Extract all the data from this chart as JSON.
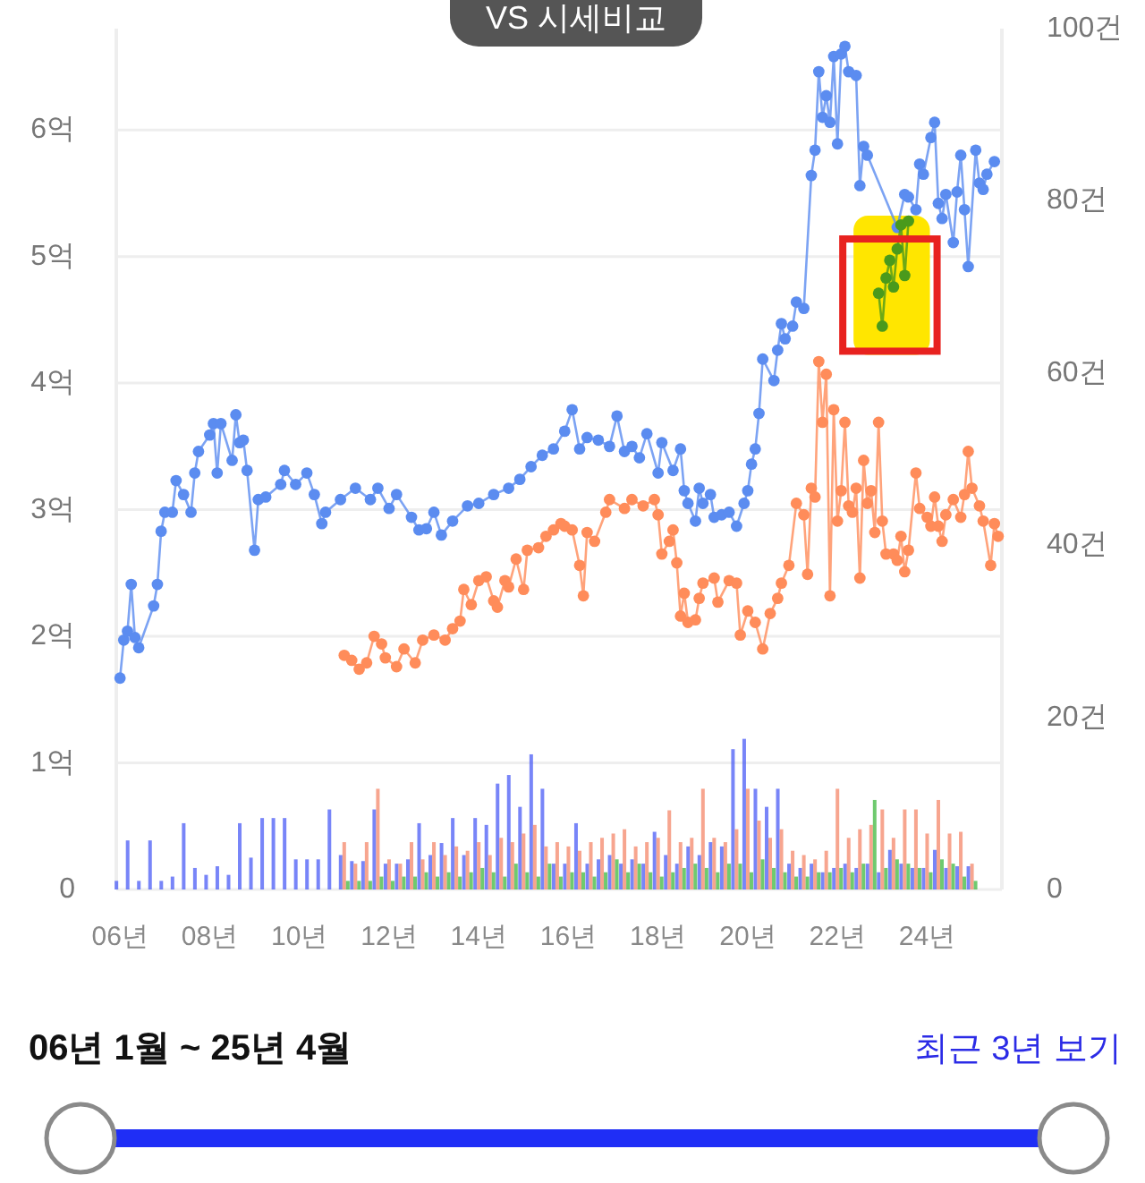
{
  "chart_data": {
    "type": "line",
    "annotations": [
      "VS 시세비교",
      "06년 1월 ~ 25년 4월",
      "최근 3년 보기"
    ],
    "xlim": [
      "2005-12",
      "2025-09"
    ],
    "xticks": [
      {
        "value": "2006-01",
        "label": "06년"
      },
      {
        "value": "2008-01",
        "label": "08년"
      },
      {
        "value": "2010-01",
        "label": "10년"
      },
      {
        "value": "2012-01",
        "label": "12년"
      },
      {
        "value": "2014-01",
        "label": "14년"
      },
      {
        "value": "2016-01",
        "label": "16년"
      },
      {
        "value": "2018-01",
        "label": "18년"
      },
      {
        "value": "2020-01",
        "label": "20년"
      },
      {
        "value": "2022-01",
        "label": "22년"
      },
      {
        "value": "2024-01",
        "label": "24년"
      }
    ],
    "ylim": [
      0,
      6.8
    ],
    "yticks": [
      0,
      {
        "value": 1,
        "label": "1억"
      },
      {
        "value": 2,
        "label": "2억"
      },
      {
        "value": 3,
        "label": "3억"
      },
      {
        "value": 4,
        "label": "4억"
      },
      {
        "value": 5,
        "label": "5억"
      },
      {
        "value": 6,
        "label": "6억"
      }
    ],
    "y2lim": [
      0,
      100
    ],
    "y2ticks": [
      0,
      {
        "value": 20,
        "label": "20건"
      },
      {
        "value": 40,
        "label": "40건"
      },
      {
        "value": 60,
        "label": "60건"
      },
      {
        "value": 80,
        "label": "80건"
      },
      {
        "value": 100,
        "label": "100건"
      }
    ],
    "grid": "y",
    "marker": "circle",
    "series": [
      {
        "type": "bar",
        "axis": "y2",
        "color": "#4b5cf5",
        "x": [
          "2006-01",
          "2006-04",
          "2006-07",
          "2006-10",
          "2007-01",
          "2007-04",
          "2007-07",
          "2007-10",
          "2008-01",
          "2008-04",
          "2008-07",
          "2008-10",
          "2009-01",
          "2009-04",
          "2009-07",
          "2009-10",
          "2010-01",
          "2010-04",
          "2010-07",
          "2010-10",
          "2011-01",
          "2011-04",
          "2011-07",
          "2011-10",
          "2012-01",
          "2012-04",
          "2012-07",
          "2012-10",
          "2013-01",
          "2013-04",
          "2013-07",
          "2013-10",
          "2014-01",
          "2014-04",
          "2014-07",
          "2014-10",
          "2015-01",
          "2015-04",
          "2015-07",
          "2015-10",
          "2016-01",
          "2016-04",
          "2016-07",
          "2016-10",
          "2017-01",
          "2017-04",
          "2017-07",
          "2017-10",
          "2018-01",
          "2018-04",
          "2018-07",
          "2018-10",
          "2019-01",
          "2019-04",
          "2019-07",
          "2019-10",
          "2020-01",
          "2020-04",
          "2020-07",
          "2020-10",
          "2021-01",
          "2021-04",
          "2021-07",
          "2021-10",
          "2022-01",
          "2022-04",
          "2022-07",
          "2022-10",
          "2023-01",
          "2023-04",
          "2023-07",
          "2023-10",
          "2024-01",
          "2024-04",
          "2024-07",
          "2024-10",
          "2025-01"
        ],
        "values": [
          1,
          5.7,
          1,
          5.7,
          1,
          1.5,
          7.7,
          2.5,
          1.7,
          2.7,
          1.7,
          7.7,
          3.7,
          8.3,
          8.3,
          8.3,
          3.5,
          3.5,
          3.5,
          9.3,
          4,
          3.3,
          3.3,
          9.3,
          3,
          3,
          3.5,
          7.7,
          4,
          5.4,
          8.3,
          4,
          8.3,
          7.5,
          12.3,
          13.3,
          9.6,
          15.7,
          11.7,
          3,
          3,
          7.7,
          3,
          3.5,
          4,
          3,
          3.5,
          3,
          6.7,
          4,
          3,
          5,
          4,
          5.5,
          5,
          16.3,
          17.5,
          11.7,
          9.6,
          11.7,
          3,
          2.5,
          3,
          2,
          2.5,
          3,
          2.5,
          3,
          2,
          4.6,
          3,
          2.5,
          2.5,
          4.6,
          2.5,
          2.7,
          2.7
        ]
      },
      {
        "type": "bar",
        "axis": "y2",
        "color": "#f4876a",
        "x": [
          "2011-01",
          "2011-04",
          "2011-07",
          "2011-10",
          "2012-01",
          "2012-04",
          "2012-07",
          "2012-10",
          "2013-01",
          "2013-04",
          "2013-07",
          "2013-10",
          "2014-01",
          "2014-04",
          "2014-07",
          "2014-10",
          "2015-01",
          "2015-04",
          "2015-07",
          "2015-10",
          "2016-01",
          "2016-04",
          "2016-07",
          "2016-10",
          "2017-01",
          "2017-04",
          "2017-07",
          "2017-10",
          "2018-01",
          "2018-04",
          "2018-07",
          "2018-10",
          "2019-01",
          "2019-04",
          "2019-07",
          "2019-10",
          "2020-01",
          "2020-04",
          "2020-07",
          "2020-10",
          "2021-01",
          "2021-04",
          "2021-07",
          "2021-10",
          "2022-01",
          "2022-04",
          "2022-07",
          "2022-10",
          "2023-01",
          "2023-04",
          "2023-07",
          "2023-10",
          "2024-01",
          "2024-04",
          "2024-07",
          "2024-10",
          "2025-01"
        ],
        "values": [
          5.5,
          3,
          5.5,
          11.7,
          3.5,
          3,
          5.5,
          3.5,
          5.5,
          4,
          5,
          4.5,
          5.5,
          4,
          6,
          5.5,
          6.5,
          7.5,
          5,
          5.5,
          5,
          4.5,
          5.5,
          6,
          6.5,
          7,
          5,
          5.5,
          6,
          9.2,
          5.5,
          6,
          11.7,
          6,
          5.5,
          7,
          11.7,
          8,
          6,
          7,
          4.5,
          4,
          3.5,
          4.5,
          11.7,
          6,
          7,
          7.5,
          9.3,
          6,
          9.3,
          9.3,
          6.5,
          10.4,
          6.5,
          6.7,
          3
        ]
      },
      {
        "type": "bar",
        "axis": "y2",
        "color": "#3fb83f",
        "x": [
          "2011-01",
          "2011-04",
          "2011-07",
          "2011-10",
          "2012-01",
          "2012-04",
          "2012-07",
          "2012-10",
          "2013-01",
          "2013-04",
          "2013-07",
          "2013-10",
          "2014-01",
          "2014-04",
          "2014-07",
          "2014-10",
          "2015-01",
          "2015-04",
          "2015-07",
          "2015-10",
          "2016-01",
          "2016-04",
          "2016-07",
          "2016-10",
          "2017-01",
          "2017-04",
          "2017-07",
          "2017-10",
          "2018-01",
          "2018-04",
          "2018-07",
          "2018-10",
          "2019-01",
          "2019-04",
          "2019-07",
          "2019-10",
          "2020-01",
          "2020-04",
          "2020-07",
          "2020-10",
          "2021-01",
          "2021-04",
          "2021-07",
          "2021-10",
          "2022-01",
          "2022-04",
          "2022-07",
          "2022-10",
          "2023-01",
          "2023-04",
          "2023-07",
          "2023-10",
          "2024-01",
          "2024-04",
          "2024-07",
          "2024-10",
          "2025-01"
        ],
        "values": [
          1,
          1,
          1,
          1.5,
          1,
          1.5,
          1.5,
          2,
          1.5,
          2,
          1.5,
          2,
          2.5,
          2,
          1.5,
          3,
          2,
          1.5,
          3,
          1.5,
          2,
          2,
          1.5,
          2,
          3.5,
          2,
          3,
          2,
          1.5,
          2,
          2.5,
          3,
          2.5,
          2,
          3,
          3,
          2,
          3.5,
          2.5,
          2,
          1.5,
          1.5,
          2,
          2,
          2.5,
          2,
          3,
          10.4,
          2.5,
          3.5,
          3,
          2.5,
          2,
          3.5,
          3,
          1.5,
          1
        ]
      },
      {
        "color": "#5b8cf0",
        "x": [
          "2006-01",
          "2006-02",
          "2006-03",
          "2006-04",
          "2006-05",
          "2006-06",
          "2006-10",
          "2006-11",
          "2006-12",
          "2007-01",
          "2007-03",
          "2007-04",
          "2007-06",
          "2007-08",
          "2007-09",
          "2007-10",
          "2008-01",
          "2008-02",
          "2008-03",
          "2008-04",
          "2008-07",
          "2008-08",
          "2008-09",
          "2008-10",
          "2008-11",
          "2009-01",
          "2009-02",
          "2009-04",
          "2009-08",
          "2009-09",
          "2009-12",
          "2010-03",
          "2010-05",
          "2010-07",
          "2010-08",
          "2010-12",
          "2011-04",
          "2011-08",
          "2011-10",
          "2012-01",
          "2012-03",
          "2012-07",
          "2012-09",
          "2012-11",
          "2013-01",
          "2013-03",
          "2013-06",
          "2013-10",
          "2014-01",
          "2014-05",
          "2014-09",
          "2014-12",
          "2015-03",
          "2015-06",
          "2015-09",
          "2015-12",
          "2016-02",
          "2016-04",
          "2016-06",
          "2016-09",
          "2016-12",
          "2017-02",
          "2017-04",
          "2017-06",
          "2017-08",
          "2017-10",
          "2018-01",
          "2018-02",
          "2018-05",
          "2018-07",
          "2018-08",
          "2018-09",
          "2018-11",
          "2018-12",
          "2019-01",
          "2019-03",
          "2019-04",
          "2019-06",
          "2019-08",
          "2019-10",
          "2019-12",
          "2020-01",
          "2020-02",
          "2020-03",
          "2020-04",
          "2020-05",
          "2020-08",
          "2020-09",
          "2020-10",
          "2020-11",
          "2021-01",
          "2021-02",
          "2021-04",
          "2021-06",
          "2021-07",
          "2021-08",
          "2021-09",
          "2021-10",
          "2021-11",
          "2021-12",
          "2022-01",
          "2022-02",
          "2022-03",
          "2022-04",
          "2022-06",
          "2022-07",
          "2022-08",
          "2022-09",
          "2023-05",
          "2023-07",
          "2023-08",
          "2023-10",
          "2023-11",
          "2023-12",
          "2024-02",
          "2024-03",
          "2024-04",
          "2024-05",
          "2024-06",
          "2024-08",
          "2024-09",
          "2024-10",
          "2024-11",
          "2024-12",
          "2025-02",
          "2025-03",
          "2025-04",
          "2025-05",
          "2025-07"
        ],
        "values": [
          1.67,
          1.97,
          2.04,
          2.41,
          1.99,
          1.91,
          2.24,
          2.41,
          2.83,
          2.98,
          2.98,
          3.23,
          3.12,
          2.98,
          3.29,
          3.46,
          3.59,
          3.68,
          3.29,
          3.68,
          3.39,
          3.75,
          3.53,
          3.55,
          3.31,
          2.68,
          3.08,
          3.1,
          3.2,
          3.31,
          3.2,
          3.29,
          3.12,
          2.89,
          2.98,
          3.08,
          3.17,
          3.08,
          3.17,
          3.01,
          3.12,
          2.94,
          2.84,
          2.85,
          2.98,
          2.8,
          2.91,
          3.03,
          3.05,
          3.12,
          3.17,
          3.24,
          3.34,
          3.43,
          3.48,
          3.62,
          3.79,
          3.48,
          3.57,
          3.55,
          3.5,
          3.74,
          3.46,
          3.5,
          3.41,
          3.6,
          3.29,
          3.53,
          3.31,
          3.48,
          3.15,
          3.05,
          2.91,
          3.17,
          3.05,
          3.12,
          2.94,
          2.96,
          2.98,
          2.87,
          3.05,
          3.15,
          3.36,
          3.48,
          3.76,
          4.19,
          4.02,
          4.26,
          4.47,
          4.35,
          4.45,
          4.64,
          4.59,
          5.64,
          5.84,
          6.46,
          6.1,
          6.27,
          6.06,
          6.58,
          5.89,
          6.6,
          6.66,
          6.46,
          6.43,
          5.56,
          5.87,
          5.8,
          5.23,
          5.49,
          5.47,
          5.37,
          5.73,
          5.65,
          5.94,
          6.06,
          5.42,
          5.3,
          5.49,
          5.11,
          5.51,
          5.8,
          5.37,
          4.92,
          5.84,
          5.58,
          5.53,
          5.65,
          5.75
        ]
      },
      {
        "color": "#ff8c5a",
        "x": [
          "2011-01",
          "2011-03",
          "2011-05",
          "2011-07",
          "2011-09",
          "2011-11",
          "2011-12",
          "2012-03",
          "2012-05",
          "2012-08",
          "2012-10",
          "2013-01",
          "2013-04",
          "2013-06",
          "2013-08",
          "2013-09",
          "2013-11",
          "2014-01",
          "2014-03",
          "2014-05",
          "2014-06",
          "2014-08",
          "2014-09",
          "2014-11",
          "2015-01",
          "2015-02",
          "2015-05",
          "2015-07",
          "2015-09",
          "2015-11",
          "2015-12",
          "2016-02",
          "2016-04",
          "2016-05",
          "2016-06",
          "2016-08",
          "2016-11",
          "2016-12",
          "2017-04",
          "2017-06",
          "2017-09",
          "2017-12",
          "2018-01",
          "2018-02",
          "2018-04",
          "2018-05",
          "2018-06",
          "2018-07",
          "2018-08",
          "2018-09",
          "2018-11",
          "2018-12",
          "2019-01",
          "2019-04",
          "2019-05",
          "2019-08",
          "2019-10",
          "2019-11",
          "2020-01",
          "2020-03",
          "2020-05",
          "2020-07",
          "2020-09",
          "2020-10",
          "2020-12",
          "2021-02",
          "2021-04",
          "2021-05",
          "2021-06",
          "2021-07",
          "2021-08",
          "2021-09",
          "2021-10",
          "2021-11",
          "2021-12",
          "2022-01",
          "2022-02",
          "2022-03",
          "2022-04",
          "2022-05",
          "2022-06",
          "2022-07",
          "2022-08",
          "2022-09",
          "2022-10",
          "2022-11",
          "2022-12",
          "2023-01",
          "2023-02",
          "2023-04",
          "2023-05",
          "2023-06",
          "2023-07",
          "2023-08",
          "2023-10",
          "2023-11",
          "2024-01",
          "2024-02",
          "2024-03",
          "2024-04",
          "2024-05",
          "2024-06",
          "2024-08",
          "2024-10",
          "2024-11",
          "2024-12",
          "2025-01",
          "2025-03",
          "2025-04",
          "2025-06",
          "2025-07",
          "2025-08"
        ],
        "values": [
          1.85,
          1.81,
          1.74,
          1.79,
          2.0,
          1.94,
          1.83,
          1.76,
          1.9,
          1.79,
          1.97,
          2.01,
          1.97,
          2.06,
          2.12,
          2.37,
          2.25,
          2.44,
          2.47,
          2.28,
          2.23,
          2.44,
          2.39,
          2.61,
          2.37,
          2.68,
          2.7,
          2.79,
          2.84,
          2.89,
          2.87,
          2.84,
          2.56,
          2.32,
          2.82,
          2.75,
          2.98,
          3.08,
          3.01,
          3.08,
          3.03,
          3.08,
          2.96,
          2.65,
          2.75,
          2.84,
          2.58,
          2.16,
          2.34,
          2.11,
          2.13,
          2.3,
          2.42,
          2.46,
          2.27,
          2.44,
          2.42,
          2.01,
          2.2,
          2.11,
          1.9,
          2.18,
          2.3,
          2.42,
          2.56,
          3.05,
          2.96,
          2.49,
          3.17,
          3.1,
          4.17,
          3.69,
          4.07,
          2.32,
          3.79,
          2.91,
          3.15,
          3.69,
          3.03,
          2.98,
          3.17,
          2.46,
          3.39,
          3.05,
          3.15,
          2.82,
          3.69,
          2.91,
          2.65,
          2.65,
          2.6,
          2.79,
          2.51,
          2.68,
          3.29,
          3.01,
          2.94,
          2.87,
          3.1,
          2.87,
          2.75,
          2.96,
          3.08,
          2.94,
          3.12,
          3.46,
          3.17,
          3.03,
          2.91,
          2.56,
          2.89,
          2.79
        ]
      },
      {
        "color": "#4a9a1c",
        "x": [
          "2022-12",
          "2023-01",
          "2023-02",
          "2023-03",
          "2023-04",
          "2023-05",
          "2023-06",
          "2023-07",
          "2023-08"
        ],
        "values": [
          4.71,
          4.45,
          4.83,
          4.97,
          4.76,
          5.06,
          5.25,
          4.85,
          5.28
        ]
      }
    ]
  }
}
